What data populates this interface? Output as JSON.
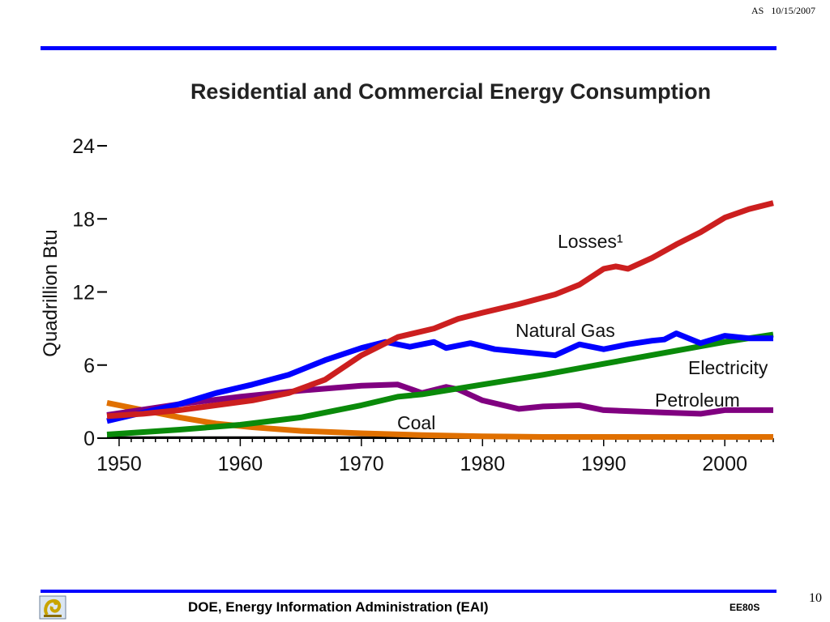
{
  "header": {
    "author": "AS",
    "date": "10/15/2007"
  },
  "footer": {
    "source": "DOE, Energy Information Administration (EAI)",
    "code": "EE80S",
    "slide_number": "10"
  },
  "colors": {
    "rule": "#0000ff",
    "losses": "#cc1f1f",
    "natural_gas": "#0000ff",
    "electricity": "#0a8a0a",
    "petroleum": "#800080",
    "coal": "#e07000",
    "other": "#000000"
  },
  "chart_data": {
    "type": "line",
    "title": "Residential and Commercial Energy Consumption",
    "ylabel": "Quadrillion Btu",
    "xlabel": "",
    "xlim": [
      1949,
      2004
    ],
    "ylim": [
      0,
      24
    ],
    "xticks": [
      1950,
      1960,
      1970,
      1980,
      1990,
      2000
    ],
    "yticks": [
      0,
      6,
      12,
      18,
      24
    ],
    "grid": false,
    "legend": "inline labels",
    "series": [
      {
        "name": "Losses¹",
        "color_key": "losses",
        "x": [
          1949,
          1952,
          1955,
          1958,
          1961,
          1964,
          1967,
          1970,
          1973,
          1976,
          1978,
          1980,
          1983,
          1986,
          1988,
          1990,
          1991,
          1992,
          1994,
          1996,
          1998,
          2000,
          2002,
          2004
        ],
        "y": [
          1.8,
          2.0,
          2.3,
          2.7,
          3.1,
          3.7,
          4.8,
          6.8,
          8.3,
          9.0,
          9.8,
          10.3,
          11.0,
          11.8,
          12.6,
          13.9,
          14.1,
          13.9,
          14.8,
          15.9,
          16.9,
          18.1,
          18.8,
          19.3
        ]
      },
      {
        "name": "Natural Gas",
        "color_key": "natural_gas",
        "x": [
          1949,
          1952,
          1955,
          1958,
          1961,
          1964,
          1967,
          1970,
          1972,
          1974,
          1976,
          1977,
          1979,
          1981,
          1983,
          1986,
          1988,
          1989,
          1990,
          1992,
          1994,
          1995,
          1996,
          1998,
          2000,
          2002,
          2004
        ],
        "y": [
          1.4,
          2.1,
          2.8,
          3.7,
          4.4,
          5.2,
          6.4,
          7.4,
          7.9,
          7.5,
          7.9,
          7.4,
          7.8,
          7.3,
          7.1,
          6.8,
          7.7,
          7.5,
          7.3,
          7.7,
          8.0,
          8.1,
          8.6,
          7.8,
          8.4,
          8.2,
          8.2
        ]
      },
      {
        "name": "Electricity",
        "color_key": "electricity",
        "x": [
          1949,
          1955,
          1960,
          1965,
          1970,
          1973,
          1975,
          1980,
          1985,
          1990,
          1995,
          2000,
          2004
        ],
        "y": [
          0.3,
          0.7,
          1.1,
          1.7,
          2.7,
          3.4,
          3.6,
          4.4,
          5.2,
          6.1,
          7.0,
          7.9,
          8.5
        ]
      },
      {
        "name": "Petroleum",
        "color_key": "petroleum",
        "x": [
          1949,
          1955,
          1960,
          1965,
          1970,
          1973,
          1975,
          1977,
          1978,
          1980,
          1983,
          1985,
          1988,
          1990,
          1995,
          1998,
          2000,
          2004
        ],
        "y": [
          1.9,
          2.8,
          3.4,
          3.9,
          4.3,
          4.4,
          3.7,
          4.2,
          4.0,
          3.1,
          2.4,
          2.6,
          2.7,
          2.3,
          2.1,
          2.0,
          2.3,
          2.3
        ]
      },
      {
        "name": "Coal",
        "color_key": "coal",
        "x": [
          1949,
          1952,
          1955,
          1958,
          1961,
          1965,
          1970,
          1975,
          1980,
          1985,
          1990,
          2004
        ],
        "y": [
          2.9,
          2.3,
          1.7,
          1.2,
          0.9,
          0.6,
          0.4,
          0.25,
          0.15,
          0.1,
          0.1,
          0.1
        ]
      },
      {
        "name": "",
        "color_key": "other",
        "x": [
          1949,
          1970,
          2004
        ],
        "y": [
          0.05,
          0.05,
          0.05
        ]
      }
    ]
  }
}
